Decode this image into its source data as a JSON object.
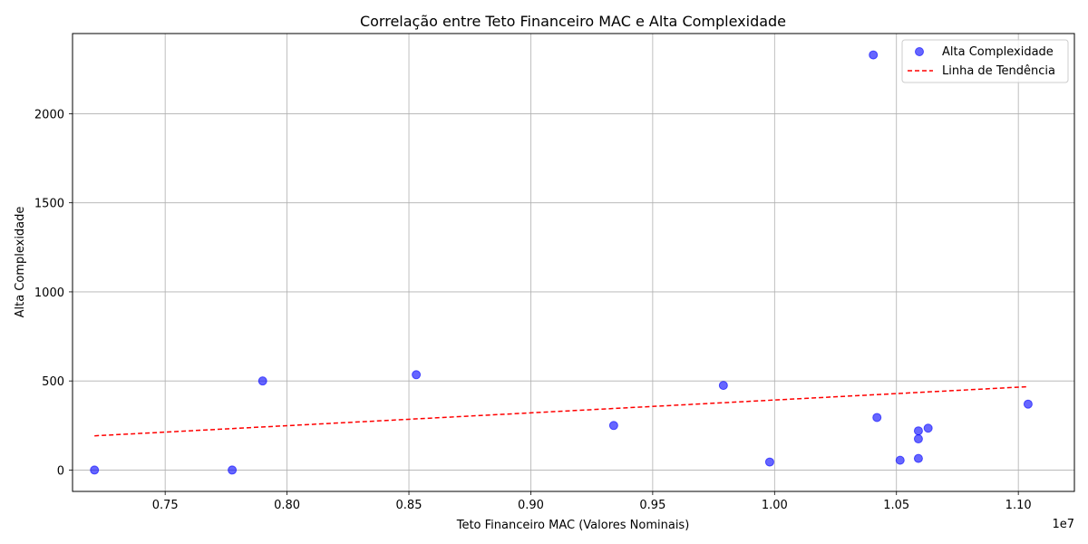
{
  "chart_data": {
    "type": "scatter",
    "title": "Correlação entre Teto Financeiro MAC e Alta Complexidade",
    "xlabel": "Teto Financeiro MAC (Valores Nominais)",
    "ylabel": "Alta Complexidade",
    "x_offset_label": "1e7",
    "xlim": [
      7120000,
      11230000
    ],
    "ylim": [
      -120,
      2450
    ],
    "x_ticks": [
      {
        "value": 7500000,
        "label": "0.75"
      },
      {
        "value": 8000000,
        "label": "0.80"
      },
      {
        "value": 8500000,
        "label": "0.85"
      },
      {
        "value": 9000000,
        "label": "0.90"
      },
      {
        "value": 9500000,
        "label": "0.95"
      },
      {
        "value": 10000000,
        "label": "1.00"
      },
      {
        "value": 10500000,
        "label": "1.05"
      },
      {
        "value": 11000000,
        "label": "1.10"
      }
    ],
    "y_ticks": [
      {
        "value": 0,
        "label": "0"
      },
      {
        "value": 500,
        "label": "500"
      },
      {
        "value": 1000,
        "label": "1000"
      },
      {
        "value": 1500,
        "label": "1500"
      },
      {
        "value": 2000,
        "label": "2000"
      }
    ],
    "grid": true,
    "legend_position": "top-right",
    "series": [
      {
        "name": "Alta Complexidade",
        "kind": "scatter",
        "color": "#0000ff",
        "points": [
          {
            "x": 7210000,
            "y": 0
          },
          {
            "x": 7775000,
            "y": 0
          },
          {
            "x": 7900000,
            "y": 500
          },
          {
            "x": 8530000,
            "y": 535
          },
          {
            "x": 9340000,
            "y": 250
          },
          {
            "x": 9790000,
            "y": 475
          },
          {
            "x": 9980000,
            "y": 45
          },
          {
            "x": 10405000,
            "y": 2330
          },
          {
            "x": 10420000,
            "y": 295
          },
          {
            "x": 10515000,
            "y": 55
          },
          {
            "x": 10590000,
            "y": 220
          },
          {
            "x": 10590000,
            "y": 175
          },
          {
            "x": 10590000,
            "y": 65
          },
          {
            "x": 10630000,
            "y": 235
          },
          {
            "x": 11040000,
            "y": 370
          }
        ]
      },
      {
        "name": "Linha de Tendência",
        "kind": "line",
        "color": "#ff0000",
        "dashed": true,
        "points": [
          {
            "x": 7210000,
            "y": 192
          },
          {
            "x": 11040000,
            "y": 468
          }
        ]
      }
    ]
  }
}
